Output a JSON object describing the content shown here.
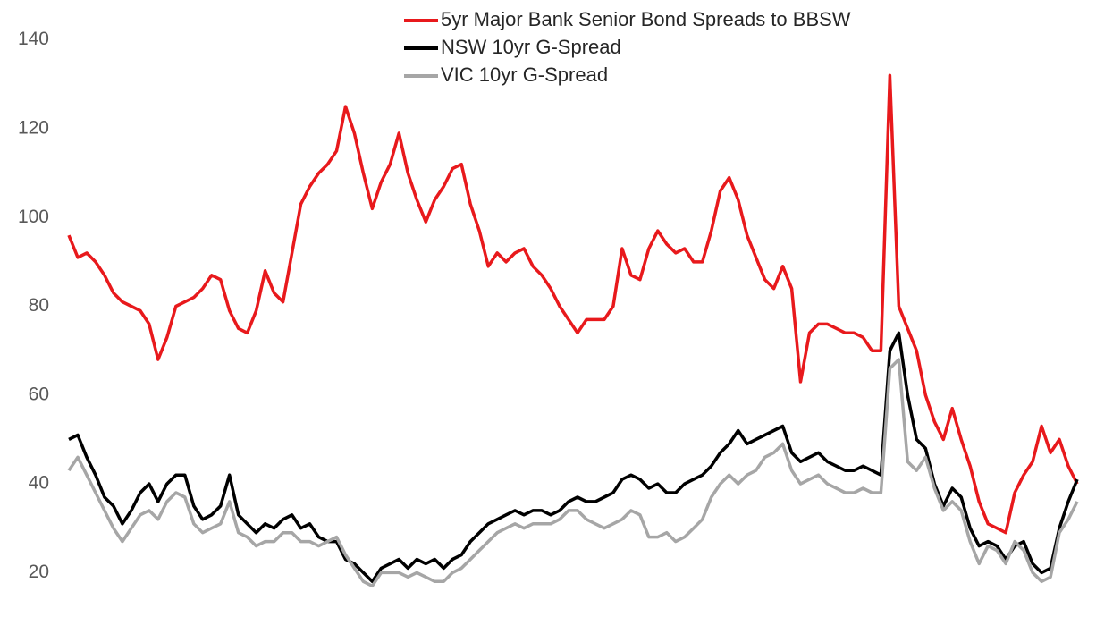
{
  "chart_data": {
    "type": "line",
    "ylim": [
      10,
      149
    ],
    "yticks": [
      20,
      40,
      60,
      80,
      100,
      120,
      140
    ],
    "grid": false,
    "legend": "top",
    "series": [
      {
        "name": "5yr Major Bank Senior Bond Spreads to BBSW",
        "color": "#e8191c",
        "values": [
          96,
          91,
          92,
          90,
          87,
          83,
          81,
          80,
          79,
          76,
          68,
          73,
          80,
          81,
          82,
          84,
          87,
          86,
          79,
          75,
          74,
          79,
          88,
          83,
          81,
          92,
          103,
          107,
          110,
          112,
          115,
          125,
          119,
          110,
          102,
          108,
          112,
          119,
          110,
          104,
          99,
          104,
          107,
          111,
          112,
          103,
          97,
          89,
          92,
          90,
          92,
          93,
          89,
          87,
          84,
          80,
          77,
          74,
          77,
          77,
          77,
          80,
          93,
          87,
          86,
          93,
          97,
          94,
          92,
          93,
          90,
          90,
          97,
          106,
          109,
          104,
          96,
          91,
          86,
          84,
          89,
          84,
          63,
          74,
          76,
          76,
          75,
          74,
          74,
          73,
          70,
          70,
          132,
          80,
          75,
          70,
          60,
          54,
          50,
          57,
          50,
          44,
          36,
          31,
          30,
          29,
          38,
          42,
          45,
          53,
          47,
          50,
          44,
          40
        ]
      },
      {
        "name": "NSW 10yr G-Spread",
        "color": "#000000",
        "values": [
          50,
          51,
          46,
          42,
          37,
          35,
          31,
          34,
          38,
          40,
          36,
          40,
          42,
          42,
          35,
          32,
          33,
          35,
          42,
          33,
          31,
          29,
          31,
          30,
          32,
          33,
          30,
          31,
          28,
          27,
          27,
          23,
          22,
          20,
          18,
          21,
          22,
          23,
          21,
          23,
          22,
          23,
          21,
          23,
          24,
          27,
          29,
          31,
          32,
          33,
          34,
          33,
          34,
          34,
          33,
          34,
          36,
          37,
          36,
          36,
          37,
          38,
          41,
          42,
          41,
          39,
          40,
          38,
          38,
          40,
          41,
          42,
          44,
          47,
          49,
          52,
          49,
          50,
          51,
          52,
          53,
          47,
          45,
          46,
          47,
          45,
          44,
          43,
          43,
          44,
          43,
          42,
          70,
          74,
          60,
          50,
          48,
          40,
          35,
          39,
          37,
          30,
          26,
          27,
          26,
          23,
          26,
          27,
          22,
          20,
          21,
          30,
          36,
          41
        ]
      },
      {
        "name": "VIC 10yr G-Spread",
        "color": "#a6a6a6",
        "values": [
          43,
          46,
          42,
          38,
          34,
          30,
          27,
          30,
          33,
          34,
          32,
          36,
          38,
          37,
          31,
          29,
          30,
          31,
          36,
          29,
          28,
          26,
          27,
          27,
          29,
          29,
          27,
          27,
          26,
          27,
          28,
          24,
          21,
          18,
          17,
          20,
          20,
          20,
          19,
          20,
          19,
          18,
          18,
          20,
          21,
          23,
          25,
          27,
          29,
          30,
          31,
          30,
          31,
          31,
          31,
          32,
          34,
          34,
          32,
          31,
          30,
          31,
          32,
          34,
          33,
          28,
          28,
          29,
          27,
          28,
          30,
          32,
          37,
          40,
          42,
          40,
          42,
          43,
          46,
          47,
          49,
          43,
          40,
          41,
          42,
          40,
          39,
          38,
          38,
          39,
          38,
          38,
          66,
          68,
          45,
          43,
          46,
          39,
          34,
          36,
          34,
          27,
          22,
          26,
          25,
          22,
          27,
          25,
          20,
          18,
          19,
          29,
          32,
          36
        ]
      }
    ]
  }
}
